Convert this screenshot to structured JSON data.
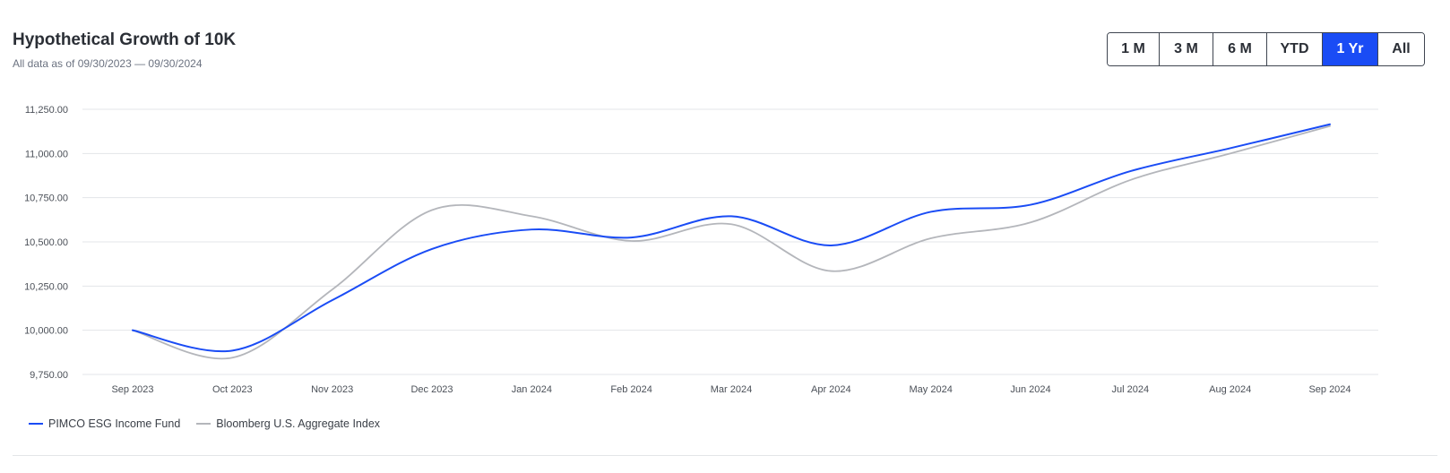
{
  "header": {
    "title": "Hypothetical Growth of 10K",
    "subtitle": "All data as of 09/30/2023 — 09/30/2024"
  },
  "range_buttons": [
    {
      "label": "1 M",
      "active": false
    },
    {
      "label": "3 M",
      "active": false
    },
    {
      "label": "6 M",
      "active": false
    },
    {
      "label": "YTD",
      "active": false
    },
    {
      "label": "1 Yr",
      "active": true
    },
    {
      "label": "All",
      "active": false
    }
  ],
  "colors": {
    "accent": "#1a4cf5",
    "fund": "#1a4cf5",
    "index": "#b4b6bb",
    "grid": "#e3e5e8"
  },
  "chart_data": {
    "type": "line",
    "categories": [
      "Sep 2023",
      "Oct 2023",
      "Nov 2023",
      "Dec 2023",
      "Jan 2024",
      "Feb 2024",
      "Mar 2024",
      "Apr 2024",
      "May 2024",
      "Jun 2024",
      "Jul 2024",
      "Aug 2024",
      "Sep 2024"
    ],
    "y_ticks": [
      "11,250.00",
      "11,000.00",
      "10,750.00",
      "10,500.00",
      "10,250.00",
      "10,000.00",
      "9,750.00"
    ],
    "ylim": [
      9750,
      11250
    ],
    "grid": true,
    "legend_position": "bottom-left",
    "series": [
      {
        "name": "PIMCO ESG Income Fund",
        "color": "#1a4cf5",
        "values": [
          10000,
          9885,
          10170,
          10460,
          10570,
          10525,
          10645,
          10480,
          10670,
          10710,
          10900,
          11030,
          11165
        ]
      },
      {
        "name": "Bloomberg U.S. Aggregate Index",
        "color": "#b4b6bb",
        "values": [
          10000,
          9845,
          10230,
          10680,
          10645,
          10505,
          10600,
          10335,
          10520,
          10610,
          10850,
          11000,
          11155
        ]
      }
    ]
  }
}
